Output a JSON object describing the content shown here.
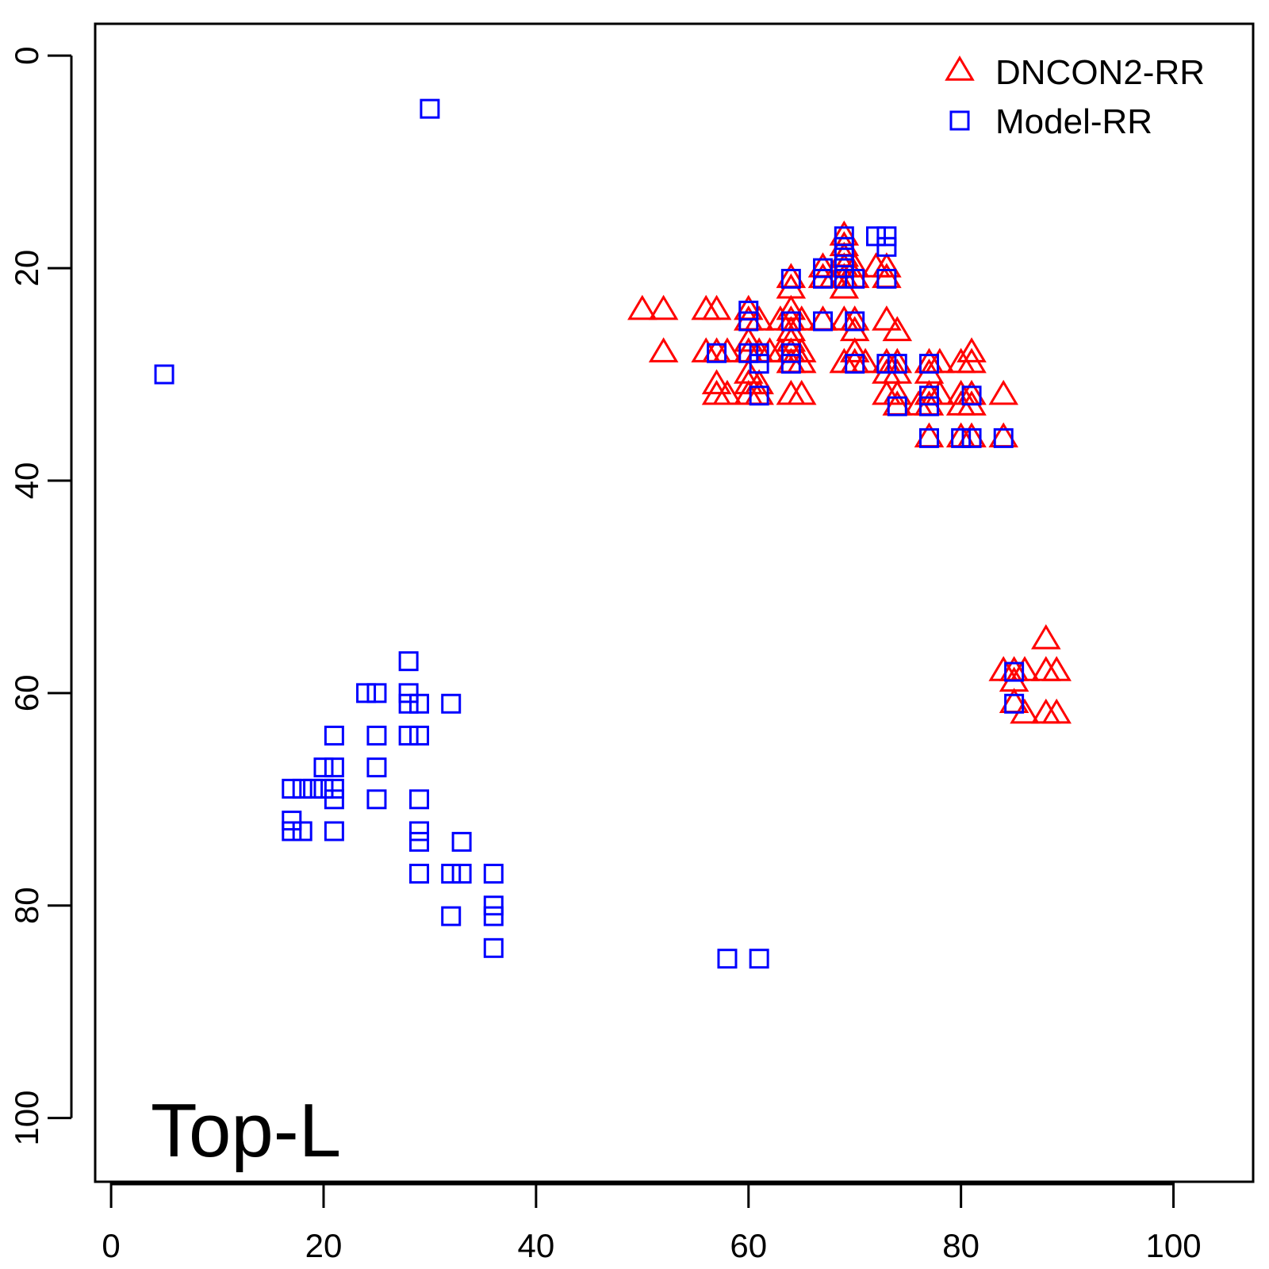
{
  "chart_data": {
    "type": "scatter",
    "title": "",
    "xlabel": "",
    "ylabel": "",
    "xlim": [
      -1.5,
      107.5
    ],
    "ylim": [
      -3,
      106
    ],
    "y_axis_reversed": true,
    "grid": false,
    "x_ticks": [
      "0",
      "20",
      "40",
      "60",
      "80",
      "100"
    ],
    "y_ticks": [
      "0",
      "20",
      "40",
      "60",
      "80",
      "100"
    ],
    "panel_label": "Top-L",
    "legend": {
      "placement": "top-right",
      "entries": [
        {
          "label": "DNCON2-RR",
          "marker": "triangle",
          "color": "#ff0000"
        },
        {
          "label": "Model-RR",
          "marker": "square",
          "color": "#0000ff"
        }
      ]
    },
    "series": [
      {
        "name": "DNCON2-RR",
        "marker": "triangle",
        "color": "#ff0000",
        "points": [
          [
            50,
            24
          ],
          [
            52,
            24
          ],
          [
            52,
            28
          ],
          [
            56,
            24
          ],
          [
            57,
            24
          ],
          [
            56,
            28
          ],
          [
            57,
            28
          ],
          [
            58,
            28
          ],
          [
            57,
            31
          ],
          [
            57,
            32
          ],
          [
            58,
            32
          ],
          [
            60,
            24
          ],
          [
            60,
            25
          ],
          [
            61,
            25
          ],
          [
            60,
            27
          ],
          [
            60,
            28
          ],
          [
            61,
            28
          ],
          [
            62,
            28
          ],
          [
            60,
            30
          ],
          [
            60,
            31
          ],
          [
            61,
            31
          ],
          [
            60,
            32
          ],
          [
            61,
            32
          ],
          [
            63,
            25
          ],
          [
            63,
            28
          ],
          [
            64,
            21
          ],
          [
            64,
            22
          ],
          [
            64,
            24
          ],
          [
            64,
            25
          ],
          [
            65,
            25
          ],
          [
            64,
            26
          ],
          [
            64,
            27
          ],
          [
            64,
            28
          ],
          [
            65,
            28
          ],
          [
            64,
            29
          ],
          [
            65,
            29
          ],
          [
            64,
            32
          ],
          [
            65,
            32
          ],
          [
            67,
            20
          ],
          [
            67,
            21
          ],
          [
            67,
            25
          ],
          [
            68,
            21
          ],
          [
            69,
            17
          ],
          [
            69,
            18
          ],
          [
            69,
            19
          ],
          [
            69,
            20
          ],
          [
            69,
            21
          ],
          [
            69,
            22
          ],
          [
            70,
            20
          ],
          [
            70,
            21
          ],
          [
            69,
            25
          ],
          [
            70,
            25
          ],
          [
            70,
            26
          ],
          [
            69,
            29
          ],
          [
            70,
            28
          ],
          [
            70,
            29
          ],
          [
            71,
            29
          ],
          [
            72,
            20
          ],
          [
            73,
            20
          ],
          [
            73,
            21
          ],
          [
            73,
            25
          ],
          [
            74,
            26
          ],
          [
            73,
            29
          ],
          [
            73,
            30
          ],
          [
            74,
            29
          ],
          [
            74,
            30
          ],
          [
            73,
            32
          ],
          [
            74,
            32
          ],
          [
            74,
            33
          ],
          [
            76,
            33
          ],
          [
            77,
            29
          ],
          [
            77,
            30
          ],
          [
            78,
            29
          ],
          [
            77,
            32
          ],
          [
            77,
            33
          ],
          [
            78,
            32
          ],
          [
            77,
            36
          ],
          [
            80,
            29
          ],
          [
            81,
            28
          ],
          [
            81,
            29
          ],
          [
            80,
            32
          ],
          [
            80,
            33
          ],
          [
            81,
            32
          ],
          [
            81,
            33
          ],
          [
            80,
            36
          ],
          [
            81,
            36
          ],
          [
            84,
            32
          ],
          [
            84,
            36
          ],
          [
            84,
            58
          ],
          [
            85,
            58
          ],
          [
            85,
            59
          ],
          [
            86,
            58
          ],
          [
            85,
            61
          ],
          [
            86,
            62
          ],
          [
            88,
            55
          ],
          [
            88,
            58
          ],
          [
            89,
            58
          ],
          [
            88,
            62
          ],
          [
            89,
            62
          ]
        ]
      },
      {
        "name": "Model-RR",
        "marker": "square",
        "color": "#0000ff",
        "points": [
          [
            5,
            30
          ],
          [
            30,
            5
          ],
          [
            17,
            69
          ],
          [
            17,
            72
          ],
          [
            17,
            73
          ],
          [
            18,
            69
          ],
          [
            18,
            73
          ],
          [
            19,
            69
          ],
          [
            20,
            67
          ],
          [
            20,
            69
          ],
          [
            21,
            64
          ],
          [
            21,
            67
          ],
          [
            21,
            69
          ],
          [
            21,
            70
          ],
          [
            21,
            73
          ],
          [
            24,
            60
          ],
          [
            25,
            60
          ],
          [
            25,
            64
          ],
          [
            25,
            67
          ],
          [
            25,
            70
          ],
          [
            28,
            57
          ],
          [
            28,
            60
          ],
          [
            28,
            61
          ],
          [
            28,
            64
          ],
          [
            29,
            61
          ],
          [
            29,
            64
          ],
          [
            29,
            70
          ],
          [
            29,
            73
          ],
          [
            29,
            74
          ],
          [
            29,
            77
          ],
          [
            32,
            61
          ],
          [
            32,
            77
          ],
          [
            32,
            81
          ],
          [
            33,
            74
          ],
          [
            33,
            77
          ],
          [
            36,
            77
          ],
          [
            36,
            80
          ],
          [
            36,
            81
          ],
          [
            36,
            84
          ],
          [
            58,
            85
          ],
          [
            61,
            85
          ],
          [
            57,
            28
          ],
          [
            60,
            24
          ],
          [
            60,
            25
          ],
          [
            60,
            28
          ],
          [
            61,
            28
          ],
          [
            61,
            29
          ],
          [
            61,
            32
          ],
          [
            64,
            21
          ],
          [
            64,
            25
          ],
          [
            64,
            28
          ],
          [
            64,
            29
          ],
          [
            67,
            20
          ],
          [
            67,
            21
          ],
          [
            67,
            25
          ],
          [
            69,
            17
          ],
          [
            69,
            18
          ],
          [
            69,
            19
          ],
          [
            69,
            20
          ],
          [
            69,
            21
          ],
          [
            70,
            21
          ],
          [
            70,
            25
          ],
          [
            70,
            29
          ],
          [
            72,
            17
          ],
          [
            73,
            17
          ],
          [
            73,
            18
          ],
          [
            73,
            21
          ],
          [
            73,
            29
          ],
          [
            74,
            29
          ],
          [
            74,
            33
          ],
          [
            77,
            29
          ],
          [
            77,
            32
          ],
          [
            77,
            33
          ],
          [
            77,
            36
          ],
          [
            80,
            36
          ],
          [
            81,
            32
          ],
          [
            81,
            36
          ],
          [
            84,
            36
          ],
          [
            85,
            58
          ],
          [
            85,
            61
          ]
        ]
      }
    ]
  }
}
